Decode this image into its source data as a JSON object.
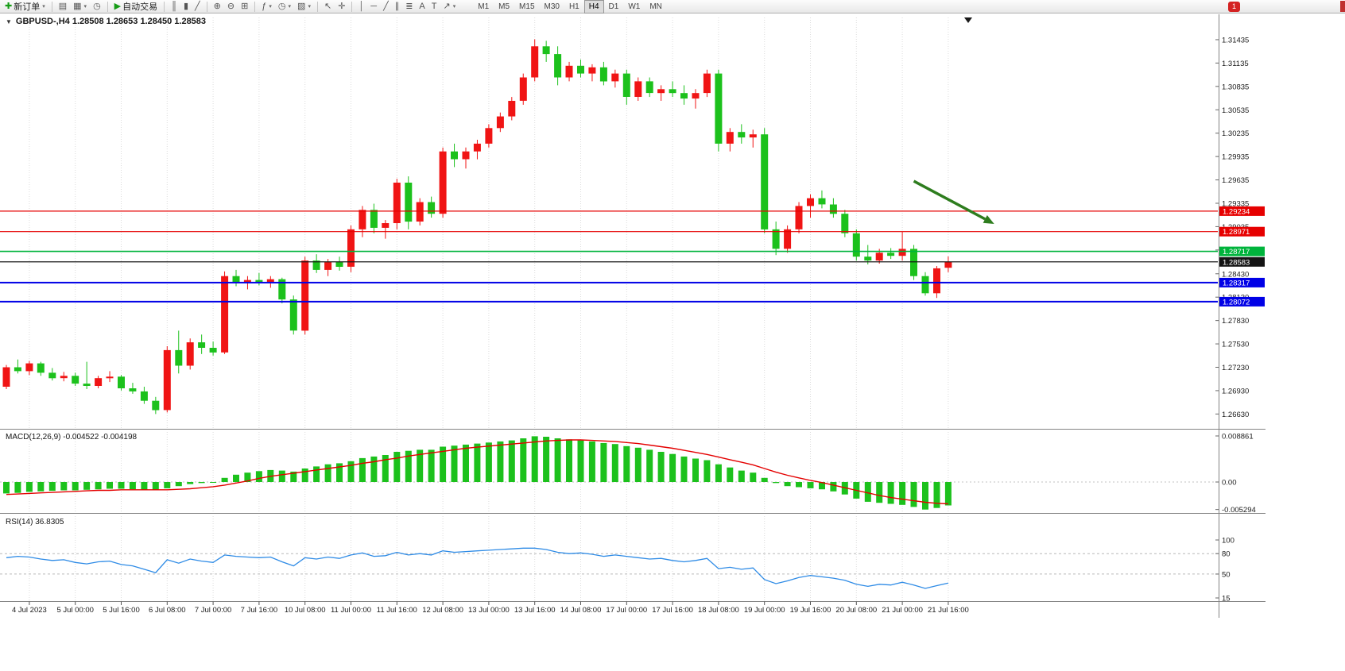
{
  "ui": {
    "collapse_glyph": "▼",
    "caret_glyph": "▾"
  },
  "toolbar": {
    "notification_badge": "1",
    "active_timeframe": "H4",
    "timeframes": [
      "M1",
      "M5",
      "M15",
      "M30",
      "H1",
      "H4",
      "D1",
      "W1",
      "MN"
    ],
    "items": [
      {
        "type": "button",
        "name": "new-order-button",
        "glyph": "✚",
        "glyph_class": "green",
        "label": "新订单",
        "caret": true
      },
      {
        "type": "sep"
      },
      {
        "type": "button",
        "name": "charts-button",
        "glyph": "▤"
      },
      {
        "type": "button",
        "name": "profiles-button",
        "glyph": "▦",
        "caret": true
      },
      {
        "type": "button",
        "name": "alerts-button",
        "glyph": "◷"
      },
      {
        "type": "sep"
      },
      {
        "type": "button",
        "name": "auto-trading-button",
        "glyph": "▶",
        "glyph_class": "green",
        "label": "自动交易"
      },
      {
        "type": "sep"
      },
      {
        "type": "button",
        "name": "bar-chart-button",
        "glyph": "║"
      },
      {
        "type": "button",
        "name": "candlestick-chart-button",
        "glyph": "▮"
      },
      {
        "type": "button",
        "name": "line-chart-button",
        "glyph": "╱"
      },
      {
        "type": "sep"
      },
      {
        "type": "button",
        "name": "zoom-in-button",
        "glyph": "⊕"
      },
      {
        "type": "button",
        "name": "zoom-out-button",
        "glyph": "⊖"
      },
      {
        "type": "button",
        "name": "tile-windows-button",
        "glyph": "⊞"
      },
      {
        "type": "sep"
      },
      {
        "type": "button",
        "name": "indicators-button",
        "glyph": "ƒ",
        "caret": true
      },
      {
        "type": "button",
        "name": "periods-button",
        "glyph": "◷",
        "caret": true
      },
      {
        "type": "button",
        "name": "templates-button",
        "glyph": "▧",
        "caret": true
      },
      {
        "type": "sep"
      },
      {
        "type": "button",
        "name": "cursor-button",
        "glyph": "↖"
      },
      {
        "type": "button",
        "name": "crosshair-button",
        "glyph": "✛"
      },
      {
        "type": "sep"
      },
      {
        "type": "button",
        "name": "vertical-line-button",
        "glyph": "│"
      },
      {
        "type": "button",
        "name": "horizontal-line-button",
        "glyph": "─"
      },
      {
        "type": "button",
        "name": "trendline-button",
        "glyph": "╱"
      },
      {
        "type": "button",
        "name": "equidistant-channel-button",
        "glyph": "∥"
      },
      {
        "type": "button",
        "name": "fibonacci-button",
        "glyph": "≣"
      },
      {
        "type": "button",
        "name": "text-button",
        "glyph": "A"
      },
      {
        "type": "button",
        "name": "text-label-button",
        "glyph": "T"
      },
      {
        "type": "button",
        "name": "arrows-button",
        "glyph": "↗",
        "caret": true
      }
    ]
  },
  "chart_data": {
    "type": "candlestick",
    "symbol": "GBPUSD-",
    "period": "H4",
    "title_text": "GBPUSD-,H4  1.28508 1.28653 1.28450 1.28583",
    "current": {
      "open": 1.28508,
      "high": 1.28653,
      "low": 1.2845,
      "close": 1.28583
    },
    "colors": {
      "bull": "#F01414",
      "bear": "#1CC11C",
      "macd_hist": "#1CC11C",
      "macd_signal": "#E40000",
      "rsi_line": "#2E8BE6",
      "grid": "#DCDCDC",
      "arrow": "#2E7D1E"
    },
    "price_axis_labels": [
      "1.31435",
      "1.31135",
      "1.30835",
      "1.30535",
      "1.30235",
      "1.29935",
      "1.29635",
      "1.29335",
      "1.29035",
      "1.28735",
      "1.28430",
      "1.28130",
      "1.27830",
      "1.27530",
      "1.27230",
      "1.26930",
      "1.26630"
    ],
    "x_axis": [
      [
        2,
        "4 Jul 2023"
      ],
      [
        6,
        "5 Jul 00:00"
      ],
      [
        10,
        "5 Jul 16:00"
      ],
      [
        14,
        "6 Jul 08:00"
      ],
      [
        18,
        "7 Jul 00:00"
      ],
      [
        22,
        "7 Jul 16:00"
      ],
      [
        26,
        "10 Jul 08:00"
      ],
      [
        30,
        "11 Jul 00:00"
      ],
      [
        34,
        "11 Jul 16:00"
      ],
      [
        38,
        "12 Jul 08:00"
      ],
      [
        42,
        "13 Jul 00:00"
      ],
      [
        46,
        "13 Jul 16:00"
      ],
      [
        50,
        "14 Jul 08:00"
      ],
      [
        54,
        "17 Jul 00:00"
      ],
      [
        58,
        "17 Jul 16:00"
      ],
      [
        62,
        "18 Jul 08:00"
      ],
      [
        66,
        "19 Jul 00:00"
      ],
      [
        70,
        "19 Jul 16:00"
      ],
      [
        74,
        "20 Jul 08:00"
      ],
      [
        78,
        "21 Jul 00:00"
      ],
      [
        82,
        "21 Jul 16:00"
      ]
    ],
    "candles": [
      [
        1.2698,
        1.2726,
        1.2695,
        1.2723
      ],
      [
        1.2723,
        1.2733,
        1.2715,
        1.2718
      ],
      [
        1.2718,
        1.2731,
        1.2713,
        1.2728
      ],
      [
        1.2728,
        1.273,
        1.2712,
        1.2716
      ],
      [
        1.2716,
        1.2722,
        1.2706,
        1.2709
      ],
      [
        1.2709,
        1.2717,
        1.2705,
        1.2712
      ],
      [
        1.2712,
        1.2716,
        1.2699,
        1.2702
      ],
      [
        1.2702,
        1.273,
        1.2695,
        1.2699
      ],
      [
        1.2699,
        1.2712,
        1.2696,
        1.2709
      ],
      [
        1.2709,
        1.2718,
        1.2704,
        1.2711
      ],
      [
        1.2711,
        1.2713,
        1.2693,
        1.2696
      ],
      [
        1.2696,
        1.2703,
        1.2689,
        1.2692
      ],
      [
        1.2692,
        1.2698,
        1.2676,
        1.268
      ],
      [
        1.268,
        1.2685,
        1.2663,
        1.2668
      ],
      [
        1.2668,
        1.275,
        1.2665,
        1.2745
      ],
      [
        1.2745,
        1.277,
        1.2715,
        1.2725
      ],
      [
        1.2725,
        1.276,
        1.272,
        1.2755
      ],
      [
        1.2755,
        1.2765,
        1.274,
        1.2748
      ],
      [
        1.2748,
        1.2756,
        1.2738,
        1.2742
      ],
      [
        1.2742,
        1.2846,
        1.274,
        1.284
      ],
      [
        1.284,
        1.2848,
        1.2827,
        1.2831
      ],
      [
        1.2831,
        1.284,
        1.2823,
        1.2835
      ],
      [
        1.2835,
        1.2844,
        1.2828,
        1.2832
      ],
      [
        1.2832,
        1.284,
        1.2825,
        1.2836
      ],
      [
        1.2836,
        1.2838,
        1.2805,
        1.281
      ],
      [
        1.281,
        1.2815,
        1.2765,
        1.277
      ],
      [
        1.277,
        1.2865,
        1.2765,
        1.286
      ],
      [
        1.286,
        1.2868,
        1.2844,
        1.2848
      ],
      [
        1.2848,
        1.2862,
        1.284,
        1.2858
      ],
      [
        1.2858,
        1.2865,
        1.2847,
        1.2852
      ],
      [
        1.2852,
        1.2905,
        1.2845,
        1.29
      ],
      [
        1.29,
        1.293,
        1.289,
        1.2925
      ],
      [
        1.2925,
        1.2933,
        1.2895,
        1.2902
      ],
      [
        1.2902,
        1.2912,
        1.2888,
        1.2908
      ],
      [
        1.2908,
        1.2965,
        1.29,
        1.296
      ],
      [
        1.296,
        1.2968,
        1.29,
        1.291
      ],
      [
        1.291,
        1.294,
        1.2905,
        1.2935
      ],
      [
        1.2935,
        1.2942,
        1.2915,
        1.292
      ],
      [
        1.292,
        1.3005,
        1.2915,
        1.3
      ],
      [
        1.3,
        1.301,
        1.298,
        1.299
      ],
      [
        1.299,
        1.3005,
        1.2978,
        1.3
      ],
      [
        1.3,
        1.3015,
        1.299,
        1.301
      ],
      [
        1.301,
        1.3035,
        1.3005,
        1.303
      ],
      [
        1.303,
        1.305,
        1.3025,
        1.3045
      ],
      [
        1.3045,
        1.307,
        1.304,
        1.3065
      ],
      [
        1.3065,
        1.31,
        1.306,
        1.3095
      ],
      [
        1.3095,
        1.3144,
        1.309,
        1.3135
      ],
      [
        1.3135,
        1.3142,
        1.3115,
        1.3125
      ],
      [
        1.3125,
        1.3135,
        1.3085,
        1.3095
      ],
      [
        1.3095,
        1.3115,
        1.309,
        1.311
      ],
      [
        1.311,
        1.3118,
        1.3095,
        1.31
      ],
      [
        1.31,
        1.3112,
        1.309,
        1.3108
      ],
      [
        1.3108,
        1.3115,
        1.3085,
        1.309
      ],
      [
        1.309,
        1.3105,
        1.3082,
        1.31
      ],
      [
        1.31,
        1.3105,
        1.306,
        1.307
      ],
      [
        1.307,
        1.3095,
        1.3065,
        1.309
      ],
      [
        1.309,
        1.3095,
        1.307,
        1.3075
      ],
      [
        1.3075,
        1.3085,
        1.3065,
        1.308
      ],
      [
        1.308,
        1.309,
        1.307,
        1.3075
      ],
      [
        1.3075,
        1.3085,
        1.306,
        1.3068
      ],
      [
        1.3068,
        1.308,
        1.3055,
        1.3075
      ],
      [
        1.3075,
        1.3105,
        1.307,
        1.31
      ],
      [
        1.31,
        1.3105,
        1.3,
        1.301
      ],
      [
        1.301,
        1.303,
        1.3,
        1.3025
      ],
      [
        1.3025,
        1.3035,
        1.301,
        1.3018
      ],
      [
        1.3018,
        1.3028,
        1.3005,
        1.3022
      ],
      [
        1.3022,
        1.303,
        1.2895,
        1.29
      ],
      [
        1.29,
        1.291,
        1.2867,
        1.2875
      ],
      [
        1.2875,
        1.2905,
        1.287,
        1.29
      ],
      [
        1.29,
        1.2935,
        1.2895,
        1.293
      ],
      [
        1.293,
        1.2945,
        1.2915,
        1.294
      ],
      [
        1.294,
        1.295,
        1.2927,
        1.2932
      ],
      [
        1.2932,
        1.294,
        1.2915,
        1.292
      ],
      [
        1.292,
        1.2925,
        1.289,
        1.2895
      ],
      [
        1.2895,
        1.29,
        1.286,
        1.2865
      ],
      [
        1.2865,
        1.288,
        1.2855,
        1.286
      ],
      [
        1.286,
        1.2875,
        1.2856,
        1.287
      ],
      [
        1.287,
        1.2876,
        1.2862,
        1.2866
      ],
      [
        1.2866,
        1.2897,
        1.286,
        1.2875
      ],
      [
        1.2875,
        1.288,
        1.2835,
        1.284
      ],
      [
        1.284,
        1.2845,
        1.2815,
        1.2818
      ],
      [
        1.2818,
        1.2853,
        1.2812,
        1.285
      ],
      [
        1.28508,
        1.28653,
        1.2845,
        1.28583
      ]
    ],
    "hlines": [
      {
        "price": 1.29234,
        "label": "1.29234",
        "color": "#E60000",
        "width": 1.2
      },
      {
        "price": 1.28971,
        "label": "1.28971",
        "color": "#E60000",
        "width": 1.2
      },
      {
        "price": 1.28717,
        "label": "1.28717",
        "color": "#00B43C",
        "width": 1.6
      },
      {
        "price": 1.28583,
        "label": "1.28583",
        "color": "#141414",
        "width": 1.2
      },
      {
        "price": 1.28317,
        "label": "1.28317",
        "color": "#0000E6",
        "width": 2
      },
      {
        "price": 1.28072,
        "label": "1.28072",
        "color": "#0000E6",
        "width": 2
      }
    ],
    "arrow_annotation": {
      "from_index": 79,
      "from_price": 1.2962,
      "to_index": 86,
      "to_price": 1.2907,
      "color": "#2E7D1E"
    },
    "macd": {
      "title_text": "MACD(12,26,9) -0.004522 -0.004198",
      "axis": [
        [
          "0.008861",
          0.008861
        ],
        [
          "0.00",
          0
        ],
        [
          "-0.005294",
          -0.005294
        ]
      ],
      "histogram": [
        -0.0022,
        -0.0021,
        -0.0019,
        -0.0018,
        -0.0017,
        -0.0016,
        -0.0016,
        -0.0015,
        -0.0014,
        -0.0013,
        -0.0013,
        -0.0014,
        -0.0015,
        -0.0016,
        -0.0012,
        -0.0008,
        -0.0004,
        -0.0002,
        0.0,
        0.0008,
        0.0014,
        0.0018,
        0.0021,
        0.0023,
        0.0022,
        0.002,
        0.0026,
        0.003,
        0.0034,
        0.0036,
        0.004,
        0.0046,
        0.0049,
        0.0052,
        0.0058,
        0.006,
        0.0062,
        0.0062,
        0.0068,
        0.007,
        0.0072,
        0.0074,
        0.0076,
        0.0078,
        0.008,
        0.0084,
        0.0088,
        0.0087,
        0.0084,
        0.0082,
        0.008,
        0.0078,
        0.0075,
        0.0073,
        0.0069,
        0.0066,
        0.0062,
        0.0058,
        0.0054,
        0.0049,
        0.0045,
        0.0042,
        0.0034,
        0.0028,
        0.0022,
        0.0018,
        0.0008,
        -0.0002,
        -0.0008,
        -0.001,
        -0.0012,
        -0.0014,
        -0.0018,
        -0.0024,
        -0.0032,
        -0.0038,
        -0.004,
        -0.0042,
        -0.0044,
        -0.0048,
        -0.0053,
        -0.005,
        -0.0045
      ],
      "signal": [
        -0.0024,
        -0.0023,
        -0.0022,
        -0.0021,
        -0.002,
        -0.0019,
        -0.0018,
        -0.0017,
        -0.0016,
        -0.0016,
        -0.0015,
        -0.0015,
        -0.0015,
        -0.0015,
        -0.0015,
        -0.0014,
        -0.0013,
        -0.0011,
        -0.0009,
        -0.0006,
        -0.0002,
        0.0002,
        0.0007,
        0.0011,
        0.0014,
        0.0017,
        0.002,
        0.0023,
        0.0026,
        0.0029,
        0.0032,
        0.0036,
        0.0039,
        0.0043,
        0.0046,
        0.005,
        0.0053,
        0.0056,
        0.0059,
        0.0062,
        0.0065,
        0.0067,
        0.0069,
        0.0071,
        0.0073,
        0.0075,
        0.0077,
        0.0079,
        0.008,
        0.0081,
        0.0081,
        0.008,
        0.0079,
        0.0078,
        0.0076,
        0.0074,
        0.0071,
        0.0068,
        0.0065,
        0.0061,
        0.0057,
        0.0053,
        0.0048,
        0.0043,
        0.0038,
        0.0033,
        0.0026,
        0.0019,
        0.0013,
        0.0008,
        0.0003,
        -0.0001,
        -0.0006,
        -0.0011,
        -0.0016,
        -0.0021,
        -0.0026,
        -0.003,
        -0.0033,
        -0.0036,
        -0.0039,
        -0.0041,
        -0.0042
      ]
    },
    "rsi": {
      "title_text": "RSI(14) 36.8305",
      "axis": [
        [
          "100",
          100
        ],
        [
          "80",
          80
        ],
        [
          "50",
          50
        ],
        [
          "15",
          15
        ]
      ],
      "levels": [
        80,
        50
      ],
      "values": [
        74,
        76,
        75,
        72,
        70,
        71,
        67,
        65,
        68,
        69,
        64,
        62,
        57,
        52,
        71,
        66,
        72,
        69,
        67,
        78,
        76,
        75,
        74,
        75,
        68,
        62,
        74,
        72,
        75,
        73,
        78,
        81,
        76,
        77,
        82,
        78,
        80,
        78,
        84,
        82,
        83,
        84,
        85,
        86,
        87,
        88,
        88,
        86,
        82,
        80,
        81,
        79,
        76,
        78,
        76,
        74,
        72,
        73,
        70,
        68,
        70,
        73,
        58,
        60,
        57,
        59,
        42,
        36,
        40,
        45,
        48,
        46,
        44,
        41,
        35,
        32,
        35,
        34,
        38,
        34,
        29,
        33,
        36.8
      ]
    }
  }
}
